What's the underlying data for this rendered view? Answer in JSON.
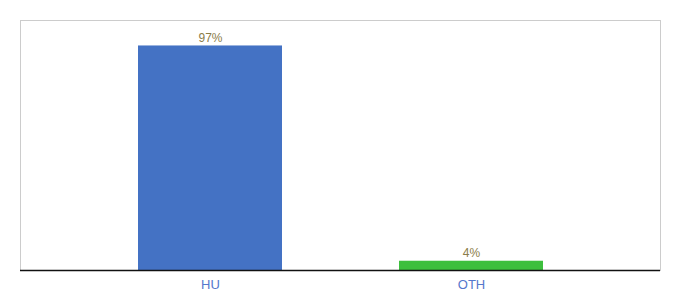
{
  "chart_data": {
    "type": "bar",
    "categories": [
      "HU",
      "OTH"
    ],
    "values": [
      97,
      4
    ],
    "value_labels": [
      "97%",
      "4%"
    ],
    "colors": [
      "#4472c4",
      "#3dbf3d"
    ],
    "ylim": [
      0,
      108
    ],
    "yticks": [],
    "data_labels": true,
    "tick_labels": "x",
    "grid": false
  }
}
